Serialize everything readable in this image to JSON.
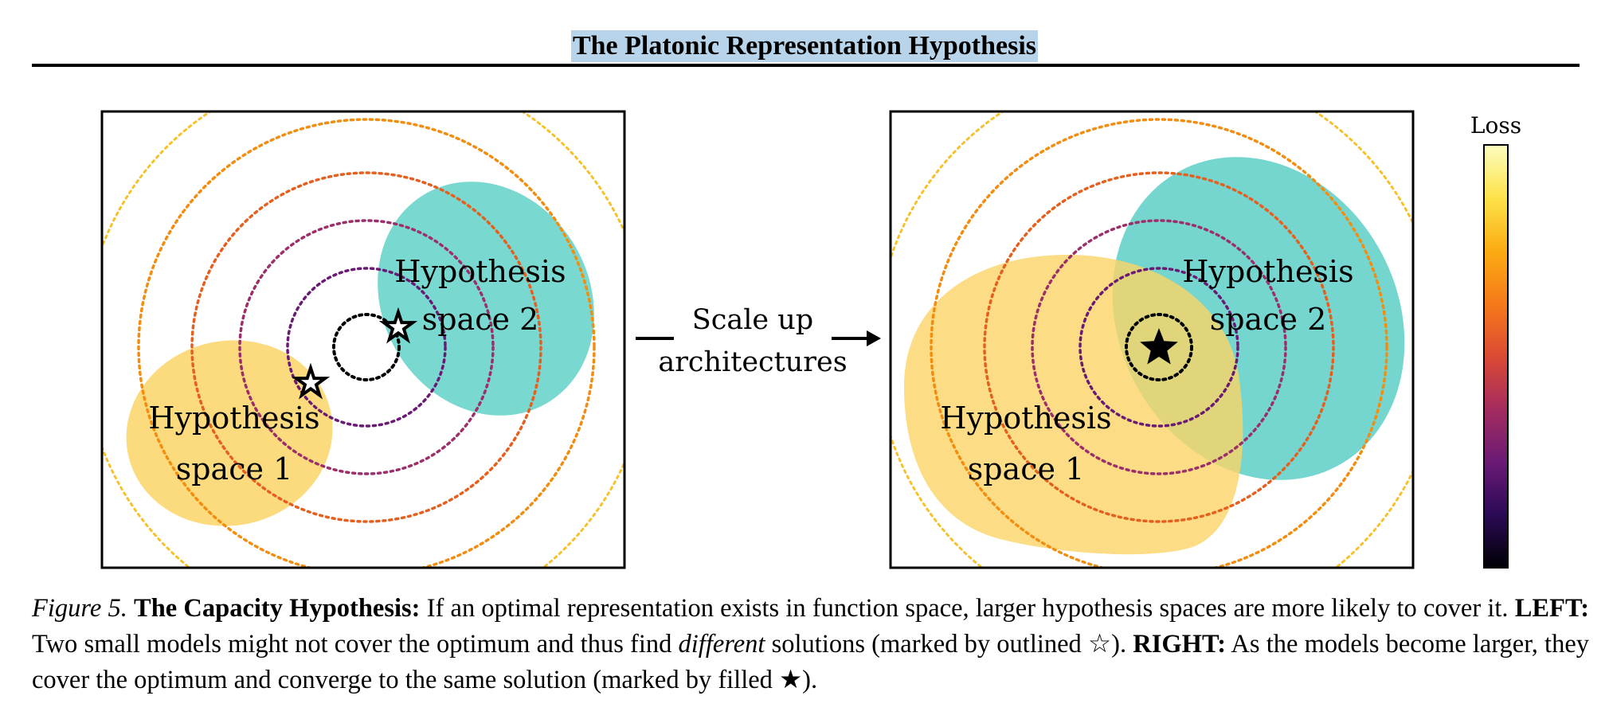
{
  "header": {
    "title": "The Platonic Representation Hypothesis"
  },
  "figure": {
    "colors": {
      "space1": "#fbd467",
      "space2": "#5ccfc6",
      "ring_inner": "#000000",
      "ring_purple": "#6a1a74",
      "ring_magenta": "#9c2f6a",
      "ring_orange": "#e5601f",
      "ring_gold": "#f28d10",
      "ring_yellow": "#f6c12a"
    },
    "left_panel": {
      "space1_label": [
        "Hypothesis",
        "space 1"
      ],
      "space2_label": [
        "Hypothesis",
        "space 2"
      ],
      "marker": "outlined-star"
    },
    "arrow_label": [
      "Scale up",
      "architectures"
    ],
    "right_panel": {
      "space1_label": [
        "Hypothesis",
        "space 1"
      ],
      "space2_label": [
        "Hypothesis",
        "space 2"
      ],
      "marker": "filled-star"
    },
    "colorbar": {
      "label": "Loss",
      "stops": [
        "#000004",
        "#2b0a55",
        "#6a1a74",
        "#a42c5f",
        "#dc4a34",
        "#f67a1a",
        "#fbac12",
        "#fde24a",
        "#fcfdbf"
      ]
    }
  },
  "caption": {
    "figure_label": "Figure 5.",
    "title": "The Capacity Hypothesis:",
    "text1": " If an optimal representation exists in function space, larger hypothesis spaces are more likely to cover it. ",
    "left_label": "LEFT:",
    "text2": " Two small models might not cover the optimum and thus find ",
    "different": "different",
    "text3": " solutions (marked by outlined ☆). ",
    "right_label": "RIGHT:",
    "text4": " As the models become larger, they cover the optimum and converge to the same solution (marked by filled ★)."
  }
}
